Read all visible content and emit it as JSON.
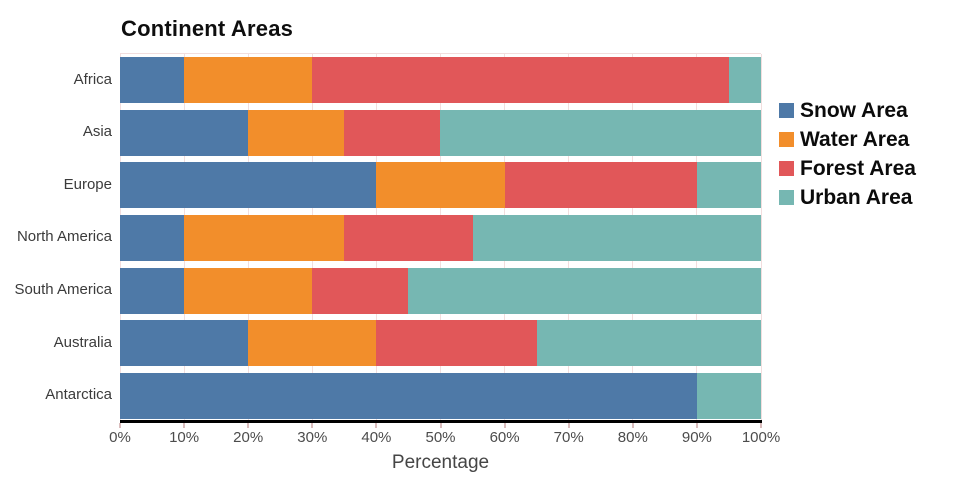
{
  "chart_data": {
    "type": "bar",
    "orientation": "horizontal",
    "stacked": true,
    "title": "Continent Areas",
    "xlabel": "Percentage",
    "categories": [
      "Africa",
      "Asia",
      "Europe",
      "North America",
      "South America",
      "Australia",
      "Antarctica"
    ],
    "series": [
      {
        "name": "Snow Area",
        "color": "#4e79a7",
        "values": [
          10,
          20,
          40,
          10,
          10,
          20,
          90
        ]
      },
      {
        "name": "Water Area",
        "color": "#f28e2b",
        "values": [
          20,
          15,
          20,
          25,
          20,
          20,
          0
        ]
      },
      {
        "name": "Forest Area",
        "color": "#e15759",
        "values": [
          65,
          15,
          30,
          20,
          15,
          25,
          0
        ]
      },
      {
        "name": "Urban Area",
        "color": "#76b7b2",
        "values": [
          5,
          50,
          10,
          45,
          55,
          35,
          10
        ]
      }
    ],
    "x_ticks": [
      "0%",
      "10%",
      "20%",
      "30%",
      "40%",
      "50%",
      "60%",
      "70%",
      "80%",
      "90%",
      "100%"
    ],
    "xlim": [
      0,
      100
    ],
    "grid": true,
    "legend_position": "right",
    "theme": {
      "gridline_color": "#f2dede",
      "axis_line_color": "#000000",
      "tick_color": "#d9bcbc",
      "tick_label_color": "#4c4c4c",
      "category_label_color": "#3b3b3b",
      "title_color": "#0e0e0e",
      "legend_text_color": "#0b0b0b",
      "background_color": "#ffffff"
    }
  }
}
